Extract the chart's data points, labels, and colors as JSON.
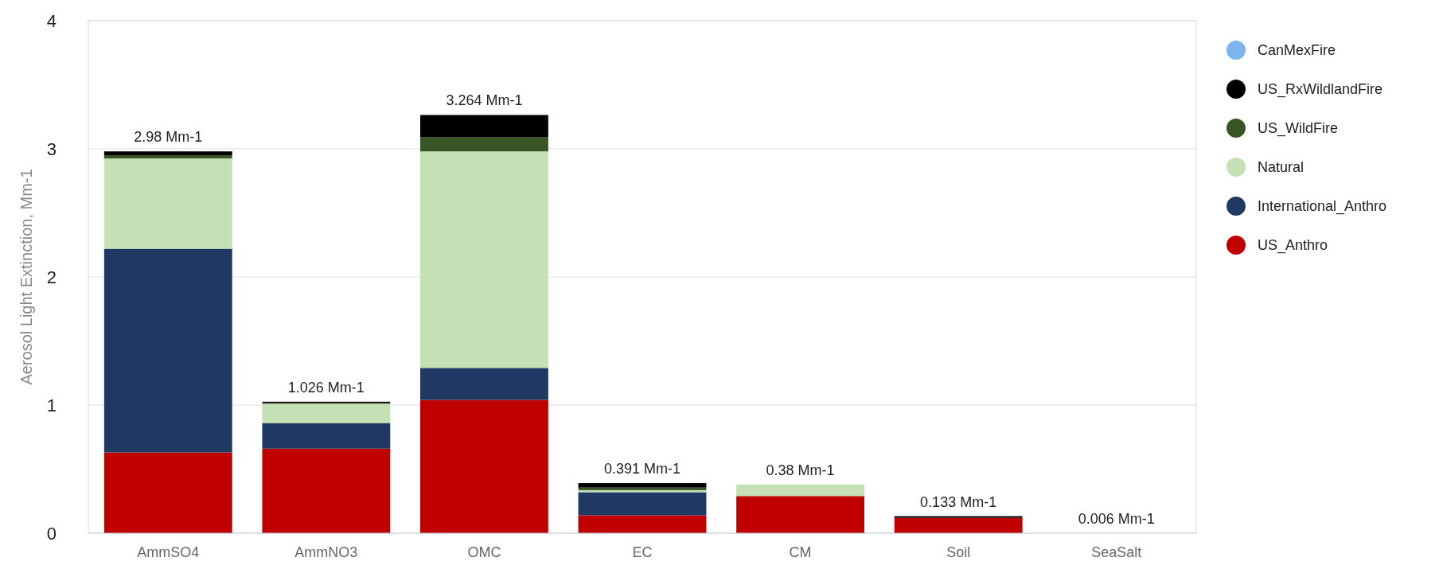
{
  "chart_data": {
    "type": "bar",
    "stacked": true,
    "ylabel": "Aerosol Light Extinction, Mm-1",
    "categories": [
      "AmmSO4",
      "AmmNO3",
      "OMC",
      "EC",
      "CM",
      "Soil",
      "SeaSalt"
    ],
    "series": [
      {
        "name": "US_Anthro",
        "color": "#c00000",
        "values": [
          0.63,
          0.66,
          1.04,
          0.14,
          0.29,
          0.12,
          0
        ]
      },
      {
        "name": "International_Anthro",
        "color": "#203864",
        "values": [
          1.59,
          0.2,
          0.25,
          0.18,
          0,
          0,
          0
        ]
      },
      {
        "name": "Natural",
        "color": "#c5e0b4",
        "values": [
          0.705,
          0.15,
          1.69,
          0.016,
          0.09,
          0,
          null
        ]
      },
      {
        "name": "US_WildFire",
        "color": "#375623",
        "values": [
          0.025,
          0.006,
          0.11,
          0.02,
          0,
          0,
          0
        ]
      },
      {
        "name": "US_RxWildlandFire",
        "color": "#000000",
        "values": [
          0.03,
          0.01,
          0.174,
          0.035,
          0,
          0.013,
          0
        ]
      },
      {
        "name": "CanMexFire",
        "color": "#7cb5ec",
        "values": [
          0,
          0,
          0,
          0,
          0,
          0,
          0
        ]
      }
    ],
    "totals": [
      "2.98 Mm-1",
      "1.026 Mm-1",
      "3.264 Mm-1",
      "0.391 Mm-1",
      "0.38 Mm-1",
      "0.133 Mm-1",
      "0.006 Mm-1"
    ],
    "ylim": [
      0,
      4
    ],
    "yticks": [
      0,
      1,
      2,
      3,
      4
    ],
    "grid": "y",
    "legend": "right"
  }
}
